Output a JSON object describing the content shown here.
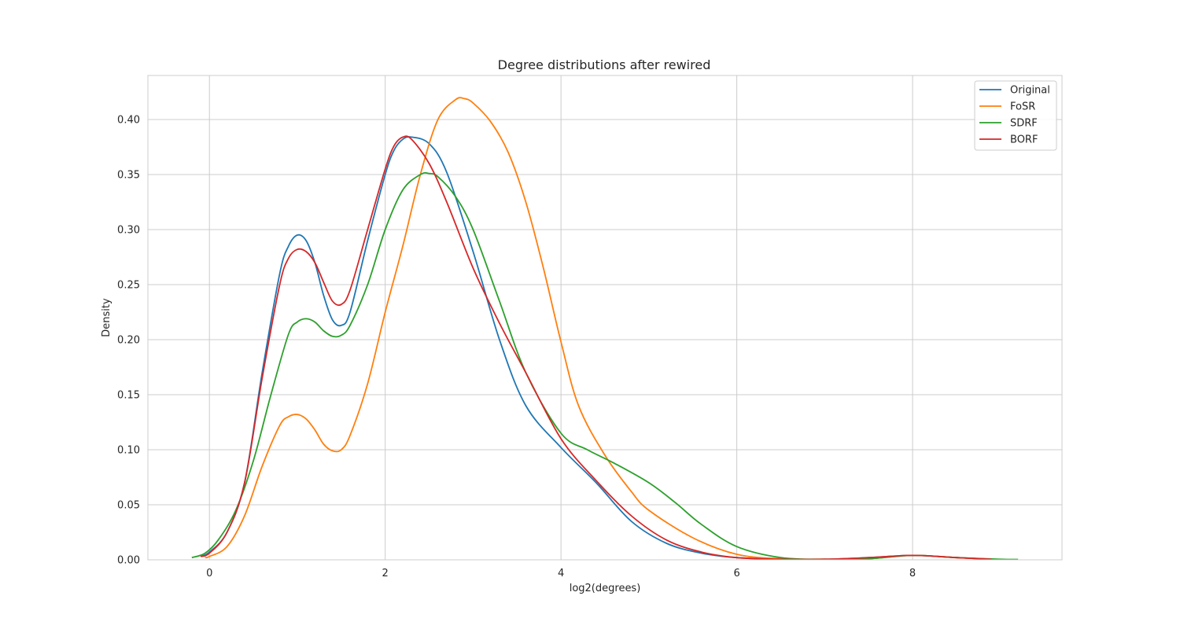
{
  "chart_data": {
    "type": "line",
    "title": "Degree distributions after rewired",
    "xlabel": "log2(degrees)",
    "ylabel": "Density",
    "xlim": [
      -0.7,
      9.7
    ],
    "ylim": [
      0,
      0.44
    ],
    "xticks": [
      0,
      2,
      4,
      6,
      8
    ],
    "yticks": [
      0.0,
      0.05,
      0.1,
      0.15,
      0.2,
      0.25,
      0.3,
      0.35,
      0.4
    ],
    "grid": true,
    "legend_position": "top-right",
    "series": [
      {
        "name": "Original",
        "color": "#1f77b4",
        "x": [
          -0.1,
          0,
          0.2,
          0.4,
          0.6,
          0.8,
          0.9,
          1.0,
          1.1,
          1.2,
          1.3,
          1.4,
          1.5,
          1.6,
          1.8,
          2.0,
          2.1,
          2.2,
          2.3,
          2.5,
          2.7,
          3.0,
          3.3,
          3.6,
          4.0,
          4.4,
          4.8,
          5.2,
          5.6,
          6.0,
          6.5,
          7.0,
          7.5,
          8.0,
          8.5,
          8.9
        ],
        "y": [
          0.003,
          0.007,
          0.025,
          0.07,
          0.17,
          0.26,
          0.285,
          0.295,
          0.29,
          0.27,
          0.24,
          0.218,
          0.213,
          0.225,
          0.29,
          0.35,
          0.372,
          0.382,
          0.384,
          0.378,
          0.352,
          0.28,
          0.2,
          0.14,
          0.102,
          0.07,
          0.035,
          0.015,
          0.006,
          0.002,
          0.0005,
          0.0005,
          0.002,
          0.004,
          0.002,
          0.0005
        ]
      },
      {
        "name": "FoSR",
        "color": "#ff7f0e",
        "x": [
          -0.05,
          0,
          0.2,
          0.4,
          0.6,
          0.8,
          0.9,
          1.0,
          1.1,
          1.2,
          1.3,
          1.4,
          1.5,
          1.6,
          1.8,
          2.0,
          2.2,
          2.4,
          2.6,
          2.8,
          2.9,
          3.0,
          3.2,
          3.4,
          3.6,
          3.8,
          4.0,
          4.2,
          4.5,
          4.8,
          5.0,
          5.5,
          6.0,
          6.5,
          7.0,
          7.5,
          8.0,
          8.5,
          8.9
        ],
        "y": [
          0.002,
          0.003,
          0.012,
          0.04,
          0.085,
          0.122,
          0.13,
          0.132,
          0.128,
          0.118,
          0.105,
          0.099,
          0.1,
          0.113,
          0.16,
          0.225,
          0.285,
          0.35,
          0.4,
          0.418,
          0.419,
          0.415,
          0.398,
          0.37,
          0.325,
          0.265,
          0.198,
          0.14,
          0.095,
          0.062,
          0.045,
          0.02,
          0.005,
          0.001,
          0.0005,
          0.001,
          0.004,
          0.002,
          0.0005
        ]
      },
      {
        "name": "SDRF",
        "color": "#2ca02c",
        "x": [
          -0.2,
          -0.05,
          0.1,
          0.3,
          0.5,
          0.7,
          0.9,
          1.0,
          1.1,
          1.2,
          1.3,
          1.4,
          1.5,
          1.6,
          1.8,
          2.0,
          2.2,
          2.4,
          2.5,
          2.6,
          2.8,
          3.0,
          3.3,
          3.6,
          4.0,
          4.3,
          4.6,
          5.0,
          5.3,
          5.6,
          6.0,
          6.5,
          7.0,
          7.5,
          8.0,
          8.5,
          9.0,
          9.2
        ],
        "y": [
          0.002,
          0.006,
          0.018,
          0.045,
          0.09,
          0.15,
          0.205,
          0.216,
          0.219,
          0.216,
          0.208,
          0.203,
          0.204,
          0.213,
          0.25,
          0.3,
          0.336,
          0.35,
          0.351,
          0.348,
          0.33,
          0.3,
          0.235,
          0.17,
          0.115,
          0.1,
          0.088,
          0.07,
          0.052,
          0.032,
          0.012,
          0.002,
          0.0005,
          0.001,
          0.004,
          0.002,
          0.0005,
          0.0003
        ]
      },
      {
        "name": "BORF",
        "color": "#d62728",
        "x": [
          -0.1,
          0,
          0.2,
          0.4,
          0.6,
          0.8,
          0.9,
          1.0,
          1.1,
          1.2,
          1.3,
          1.4,
          1.5,
          1.6,
          1.8,
          2.0,
          2.1,
          2.2,
          2.3,
          2.5,
          2.7,
          3.0,
          3.3,
          3.6,
          4.0,
          4.4,
          4.8,
          5.2,
          5.6,
          6.0,
          6.5,
          7.0,
          7.5,
          8.0,
          8.5,
          8.9
        ],
        "y": [
          0.003,
          0.006,
          0.025,
          0.07,
          0.165,
          0.25,
          0.274,
          0.282,
          0.28,
          0.27,
          0.252,
          0.235,
          0.232,
          0.245,
          0.3,
          0.355,
          0.376,
          0.384,
          0.382,
          0.36,
          0.325,
          0.265,
          0.215,
          0.17,
          0.11,
          0.072,
          0.04,
          0.018,
          0.007,
          0.002,
          0.0005,
          0.0005,
          0.002,
          0.004,
          0.002,
          0.0005
        ]
      }
    ]
  }
}
